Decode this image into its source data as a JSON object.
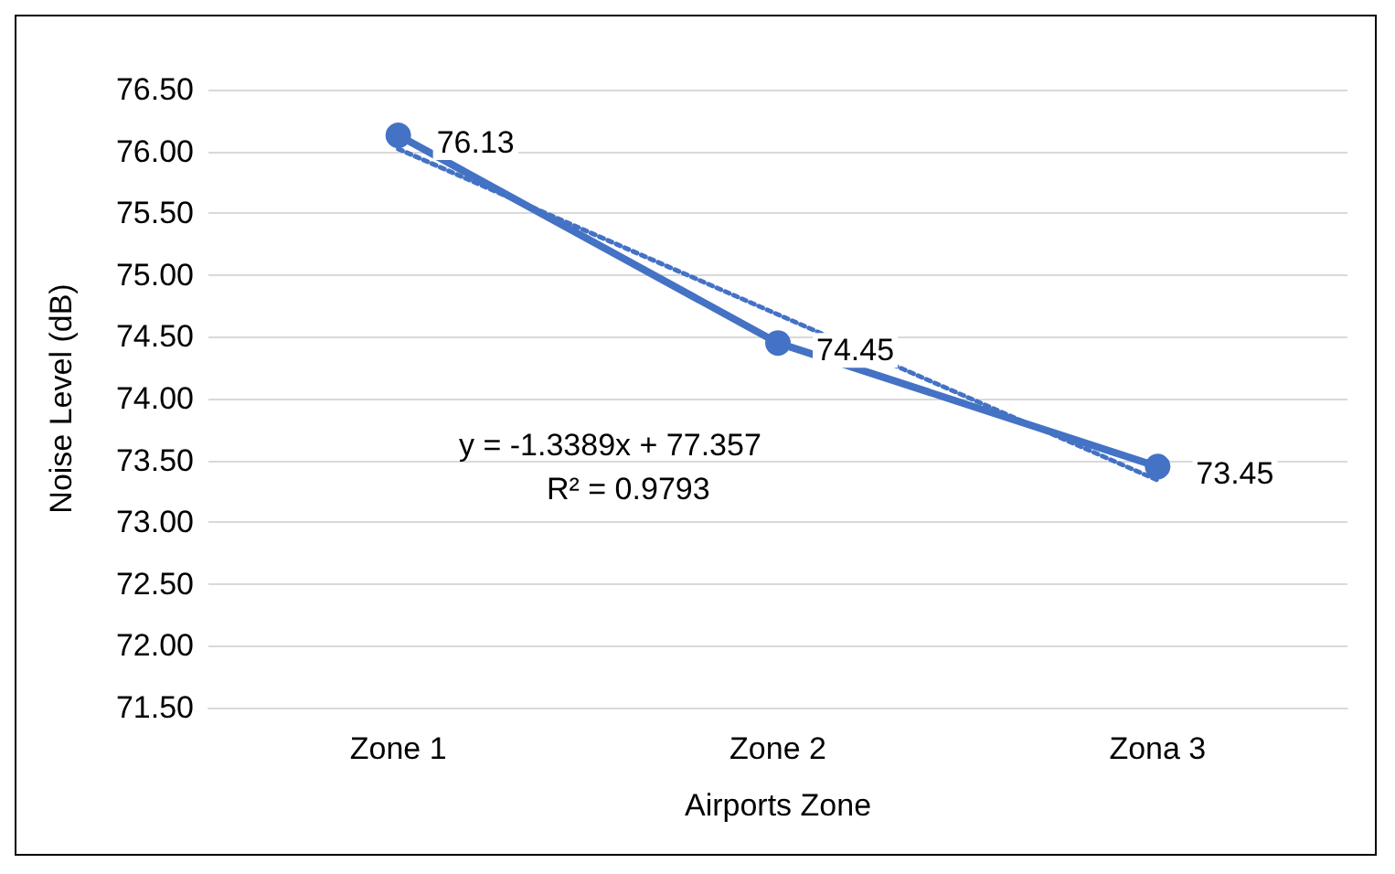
{
  "chart_data": {
    "type": "line",
    "xlabel": "Airports Zone",
    "ylabel": "Noise Level (dB)",
    "categories": [
      "Zone 1",
      "Zone 2",
      "Zona 3"
    ],
    "series": [
      {
        "color": "#4472c4",
        "values": [
          76.13,
          74.45,
          73.45
        ],
        "value_labels": [
          "76.13",
          "74.45",
          "73.45"
        ],
        "marker": "circle",
        "line_style": "solid"
      },
      {
        "type": "line",
        "color": "#4472c4",
        "values": [
          76.02,
          74.68,
          73.34
        ],
        "marker": "none",
        "line_style": "dotted"
      }
    ],
    "ylim": [
      71.5,
      76.5
    ],
    "yticks": [
      {
        "value": 71.5,
        "label": "71.50"
      },
      {
        "value": 72,
        "label": "72.00"
      },
      {
        "value": 72.5,
        "label": "72.50"
      },
      {
        "value": 73,
        "label": "73.00"
      },
      {
        "value": 73.5,
        "label": "73.50"
      },
      {
        "value": 74,
        "label": "74.00"
      },
      {
        "value": 74.5,
        "label": "74.50"
      },
      {
        "value": 75,
        "label": "75.00"
      },
      {
        "value": 75.5,
        "label": "75.50"
      },
      {
        "value": 76,
        "label": "76.00"
      },
      {
        "value": 76.5,
        "label": "76.50"
      }
    ],
    "grid": "y",
    "annotations": [
      "y = -1.3389x + 77.357",
      "R² = 0.9793"
    ]
  }
}
